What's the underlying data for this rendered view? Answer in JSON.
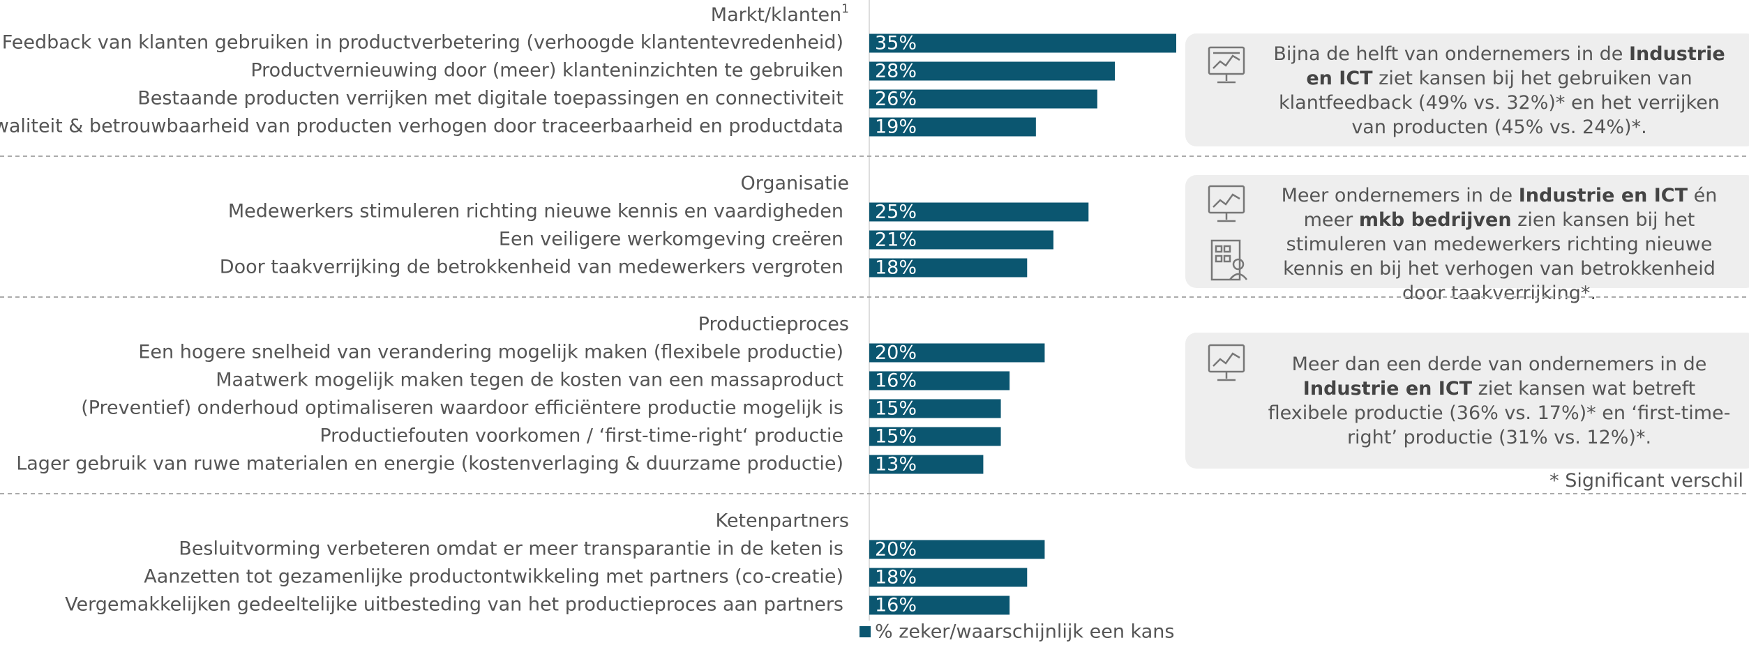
{
  "chart_data": {
    "type": "bar",
    "color": "#0b5670",
    "legend": "% zeker/waarschijnlijk een kans",
    "groups": [
      {
        "title": "Markt/klanten",
        "title_sup": "1",
        "categories": [
          "Feedback van klanten gebruiken in productverbetering (verhoogde klantentevredenheid)",
          "Productvernieuwing door (meer) klanteninzichten te gebruiken",
          "Bestaande producten verrijken met digitale toepassingen en connectiviteit",
          "Kwaliteit & betrouwbaarheid van producten verhogen door traceerbaarheid en productdata"
        ],
        "values": [
          35,
          28,
          26,
          19
        ],
        "value_labels": [
          "35%",
          "28%",
          "26%",
          "19%"
        ]
      },
      {
        "title": "Organisatie",
        "categories": [
          "Medewerkers stimuleren richting nieuwe kennis en vaardigheden",
          "Een veiligere werkomgeving creëren",
          "Door taakverrijking de betrokkenheid van medewerkers vergroten"
        ],
        "values": [
          25,
          21,
          18
        ],
        "value_labels": [
          "25%",
          "21%",
          "18%"
        ]
      },
      {
        "title": "Productieproces",
        "categories": [
          "Een hogere snelheid van verandering mogelijk maken (flexibele productie)",
          "Maatwerk mogelijk maken tegen de kosten van een massaproduct",
          "(Preventief) onderhoud optimaliseren waardoor efficiëntere productie mogelijk is",
          "Productiefouten voorkomen / ‘first-time-right‘ productie",
          "Lager gebruik van ruwe materialen en energie (kostenverlaging & duurzame productie)"
        ],
        "values": [
          20,
          16,
          15,
          15,
          13
        ],
        "value_labels": [
          "20%",
          "16%",
          "15%",
          "15%",
          "13%"
        ]
      },
      {
        "title": "Ketenpartners",
        "categories": [
          "Besluitvorming verbeteren omdat er meer transparantie in de keten is",
          "Aanzetten tot gezamenlijke productontwikkeling met partners (co-creatie)",
          "Vergemakkelijken gedeeltelijke uitbesteding van het productieproces aan partners"
        ],
        "values": [
          20,
          18,
          16
        ],
        "value_labels": [
          "20%",
          "18%",
          "16%"
        ]
      }
    ],
    "callouts": [
      {
        "parts": [
          {
            "text": "Bijna de helft van ondernemers in de ",
            "bold": false
          },
          {
            "text": "Industrie en ICT",
            "bold": true
          },
          {
            "text": " ziet kansen bij het gebruiken van klantfeedback (49% vs. 32%)* en het verrijken van producten (45% vs. 24%)*.",
            "bold": false
          }
        ]
      },
      {
        "parts": [
          {
            "text": "Meer ondernemers in de ",
            "bold": false
          },
          {
            "text": "Industrie en ICT",
            "bold": true
          },
          {
            "text": " én meer ",
            "bold": false
          },
          {
            "text": "mkb bedrijven",
            "bold": true
          },
          {
            "text": " zien kansen bij het stimuleren van medewerkers richting nieuwe kennis en bij het verhogen van betrokkenheid door taakverrijking*.",
            "bold": false
          }
        ]
      },
      {
        "parts": [
          {
            "text": "Meer dan een derde van ondernemers in de ",
            "bold": false
          },
          {
            "text": "Industrie en ICT",
            "bold": true
          },
          {
            "text": " ziet kansen wat betreft flexibele productie (36% vs. 17%)* en ‘first-time-right’ productie (31% vs. 12%)*.",
            "bold": false
          }
        ]
      }
    ],
    "note": "* Significant verschil"
  }
}
